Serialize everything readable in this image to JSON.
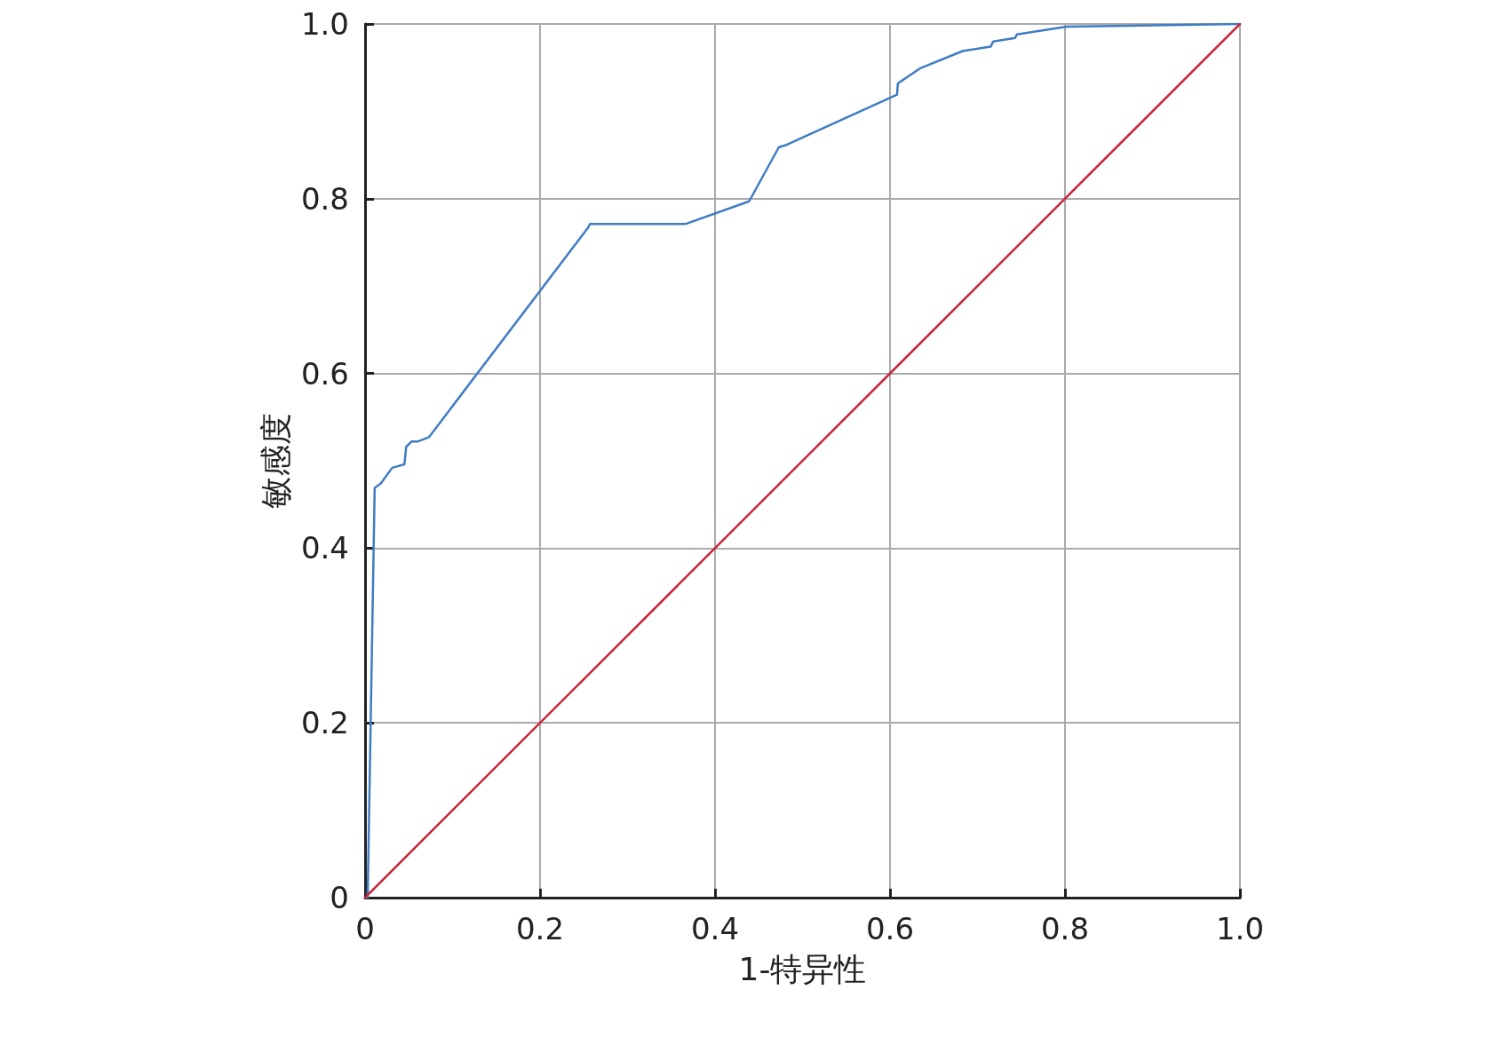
{
  "chart_data": {
    "type": "line",
    "xlabel": "1-特异性",
    "ylabel": "敏感度",
    "series": [
      {
        "color": "#3f7cc4",
        "x": [
          0,
          0.003,
          0.011,
          0.018,
          0.031,
          0.045,
          0.047,
          0.053,
          0.06,
          0.073,
          0.255,
          0.257,
          0.366,
          0.439,
          0.473,
          0.48,
          0.608,
          0.609,
          0.634,
          0.683,
          0.715,
          0.718,
          0.743,
          0.745,
          0.802,
          1
        ],
        "values": [
          0,
          0,
          0.469,
          0.474,
          0.492,
          0.496,
          0.516,
          0.522,
          0.522,
          0.527,
          0.767,
          0.771,
          0.771,
          0.797,
          0.859,
          0.861,
          0.919,
          0.932,
          0.949,
          0.969,
          0.974,
          0.98,
          0.984,
          0.988,
          0.997,
          1
        ]
      },
      {
        "color": "#c8283c",
        "x": [
          0,
          1
        ],
        "values": [
          0,
          1
        ]
      }
    ],
    "xlim": [
      0,
      1
    ],
    "ylim": [
      0,
      1
    ],
    "xticks": [
      0,
      0.2,
      0.4,
      0.6,
      0.8,
      {
        "value": 1,
        "label": "1.0"
      }
    ],
    "yticks": [
      0,
      0.2,
      0.4,
      0.6,
      0.8,
      {
        "value": 1,
        "label": "1.0"
      }
    ],
    "grid": true,
    "marker": "none",
    "line_style": "solid"
  }
}
